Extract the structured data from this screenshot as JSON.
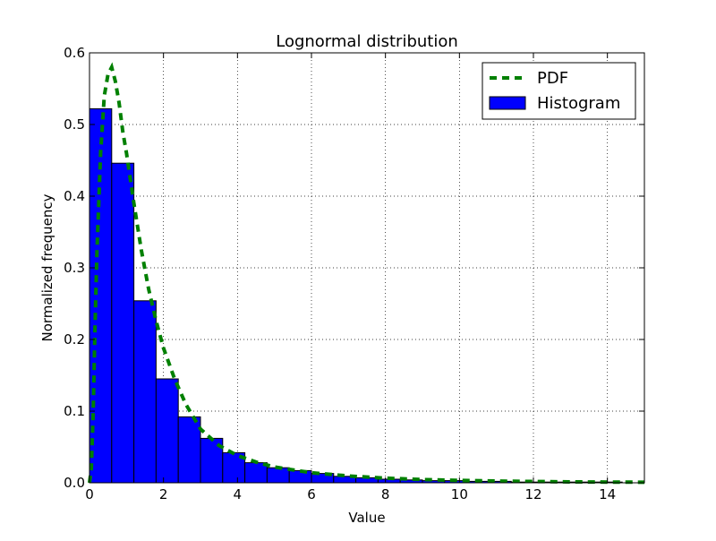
{
  "chart_data": {
    "type": "bar",
    "title": "Lognormal distribution",
    "xlabel": "Value",
    "ylabel": "Normalized frequency",
    "xlim": [
      0,
      15
    ],
    "ylim": [
      0,
      0.6
    ],
    "grid": true,
    "legend_position": "top-right",
    "x_ticks": [
      0,
      2,
      4,
      6,
      8,
      10,
      12,
      14
    ],
    "y_ticks": [
      0.0,
      0.1,
      0.2,
      0.3,
      0.4,
      0.5,
      0.6
    ],
    "x_tick_labels": [
      "0",
      "2",
      "4",
      "6",
      "8",
      "10",
      "12",
      "14"
    ],
    "y_tick_labels": [
      "0.0",
      "0.1",
      "0.2",
      "0.3",
      "0.4",
      "0.5",
      "0.6"
    ],
    "series": [
      {
        "name": "Histogram",
        "kind": "histogram",
        "color": "#0000ff",
        "bins": [
          {
            "x0": 0.0,
            "x1": 0.6,
            "value": 0.522
          },
          {
            "x0": 0.6,
            "x1": 1.2,
            "value": 0.446
          },
          {
            "x0": 1.2,
            "x1": 1.8,
            "value": 0.254
          },
          {
            "x0": 1.8,
            "x1": 2.4,
            "value": 0.145
          },
          {
            "x0": 2.4,
            "x1": 3.0,
            "value": 0.092
          },
          {
            "x0": 3.0,
            "x1": 3.6,
            "value": 0.062
          },
          {
            "x0": 3.6,
            "x1": 4.2,
            "value": 0.042
          },
          {
            "x0": 4.2,
            "x1": 4.8,
            "value": 0.028
          },
          {
            "x0": 4.8,
            "x1": 5.4,
            "value": 0.021
          },
          {
            "x0": 5.4,
            "x1": 6.0,
            "value": 0.017
          },
          {
            "x0": 6.0,
            "x1": 6.6,
            "value": 0.013
          },
          {
            "x0": 6.6,
            "x1": 7.2,
            "value": 0.009
          },
          {
            "x0": 7.2,
            "x1": 7.8,
            "value": 0.007
          },
          {
            "x0": 7.8,
            "x1": 8.4,
            "value": 0.005
          },
          {
            "x0": 8.4,
            "x1": 9.0,
            "value": 0.004
          },
          {
            "x0": 9.0,
            "x1": 9.6,
            "value": 0.003
          },
          {
            "x0": 9.6,
            "x1": 10.2,
            "value": 0.003
          },
          {
            "x0": 10.2,
            "x1": 10.8,
            "value": 0.002
          },
          {
            "x0": 10.8,
            "x1": 11.4,
            "value": 0.002
          },
          {
            "x0": 11.4,
            "x1": 12.0,
            "value": 0.001
          },
          {
            "x0": 12.0,
            "x1": 12.6,
            "value": 0.001
          },
          {
            "x0": 12.6,
            "x1": 13.2,
            "value": 0.001
          },
          {
            "x0": 13.2,
            "x1": 13.8,
            "value": 0.001
          },
          {
            "x0": 13.8,
            "x1": 14.4,
            "value": 0.001
          },
          {
            "x0": 14.4,
            "x1": 15.0,
            "value": 0.0
          }
        ]
      },
      {
        "name": "PDF",
        "kind": "line",
        "style": "dashed",
        "color": "#008000",
        "points": [
          {
            "x": 0.0,
            "y": 0.0
          },
          {
            "x": 0.05,
            "y": 0.02
          },
          {
            "x": 0.1,
            "y": 0.1
          },
          {
            "x": 0.15,
            "y": 0.22
          },
          {
            "x": 0.2,
            "y": 0.32
          },
          {
            "x": 0.3,
            "y": 0.46
          },
          {
            "x": 0.4,
            "y": 0.54
          },
          {
            "x": 0.5,
            "y": 0.57
          },
          {
            "x": 0.6,
            "y": 0.58
          },
          {
            "x": 0.7,
            "y": 0.56
          },
          {
            "x": 0.8,
            "y": 0.53
          },
          {
            "x": 0.9,
            "y": 0.49
          },
          {
            "x": 1.0,
            "y": 0.46
          },
          {
            "x": 1.2,
            "y": 0.39
          },
          {
            "x": 1.4,
            "y": 0.325
          },
          {
            "x": 1.6,
            "y": 0.27
          },
          {
            "x": 1.8,
            "y": 0.226
          },
          {
            "x": 2.0,
            "y": 0.188
          },
          {
            "x": 2.3,
            "y": 0.145
          },
          {
            "x": 2.6,
            "y": 0.11
          },
          {
            "x": 3.0,
            "y": 0.075
          },
          {
            "x": 3.5,
            "y": 0.052
          },
          {
            "x": 4.0,
            "y": 0.038
          },
          {
            "x": 4.5,
            "y": 0.029
          },
          {
            "x": 5.0,
            "y": 0.022
          },
          {
            "x": 6.0,
            "y": 0.014
          },
          {
            "x": 7.0,
            "y": 0.0095
          },
          {
            "x": 8.0,
            "y": 0.0065
          },
          {
            "x": 9.0,
            "y": 0.0045
          },
          {
            "x": 10.0,
            "y": 0.0033
          },
          {
            "x": 11.0,
            "y": 0.0024
          },
          {
            "x": 12.0,
            "y": 0.0018
          },
          {
            "x": 13.0,
            "y": 0.0013
          },
          {
            "x": 14.0,
            "y": 0.001
          },
          {
            "x": 15.0,
            "y": 0.0008
          }
        ]
      }
    ]
  }
}
